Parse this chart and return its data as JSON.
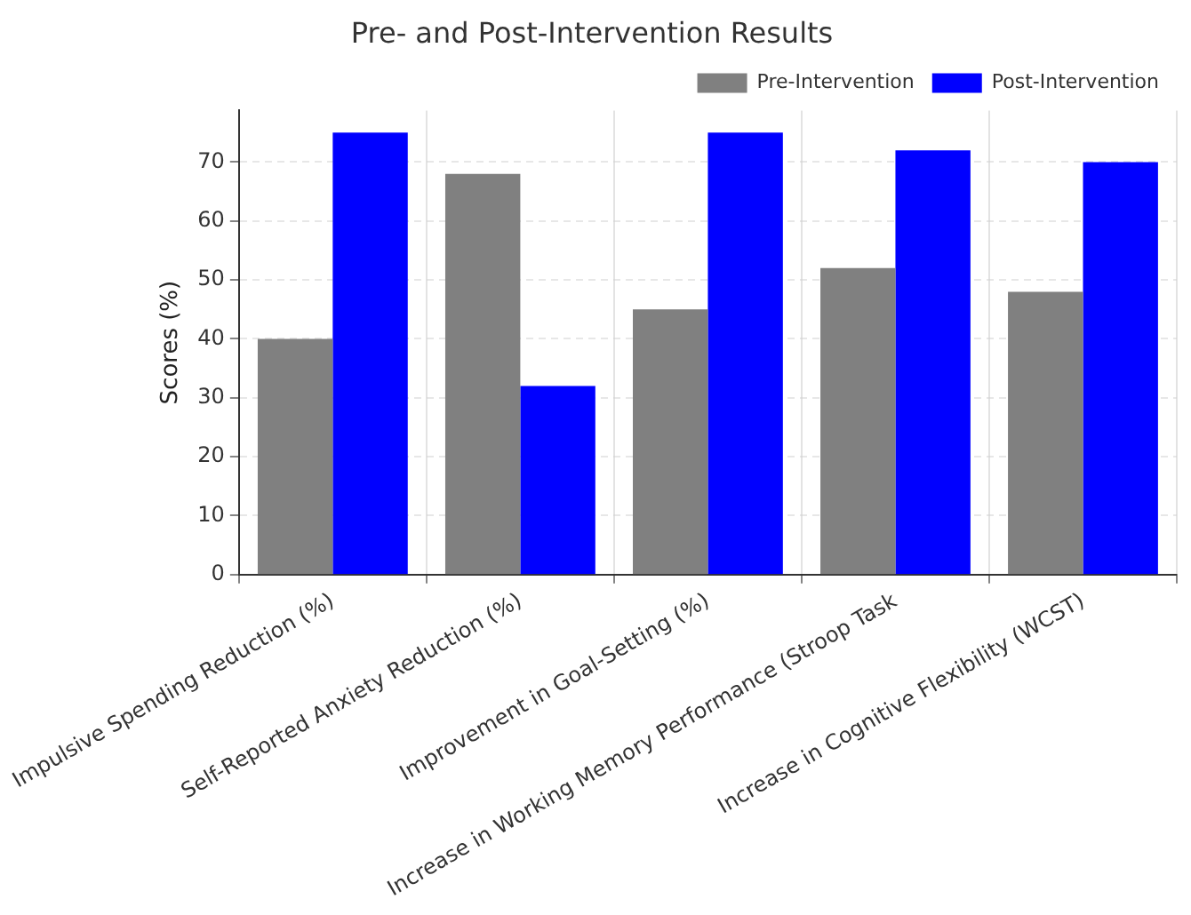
{
  "chart_data": {
    "type": "bar",
    "title": "Pre- and Post-Intervention Results",
    "ylabel": "Scores (%)",
    "categories": [
      "Impulsive Spending Reduction (%)",
      "Self-Reported Anxiety Reduction (%)",
      "Improvement in Goal-Setting (%)",
      "Increase in Working Memory Performance (Stroop Task",
      "Increase in Cognitive Flexibility (WCST)"
    ],
    "series": [
      {
        "name": "Pre-Intervention",
        "color": "#808080",
        "values": [
          40,
          68,
          45,
          52,
          48
        ]
      },
      {
        "name": "Post-Intervention",
        "color": "#0000ff",
        "values": [
          75,
          32,
          75,
          72,
          70
        ]
      }
    ],
    "ylim": [
      0,
      78.75
    ],
    "yticks": [
      0,
      10,
      20,
      30,
      40,
      50,
      60,
      70
    ],
    "grid": true,
    "legend": "top right"
  }
}
